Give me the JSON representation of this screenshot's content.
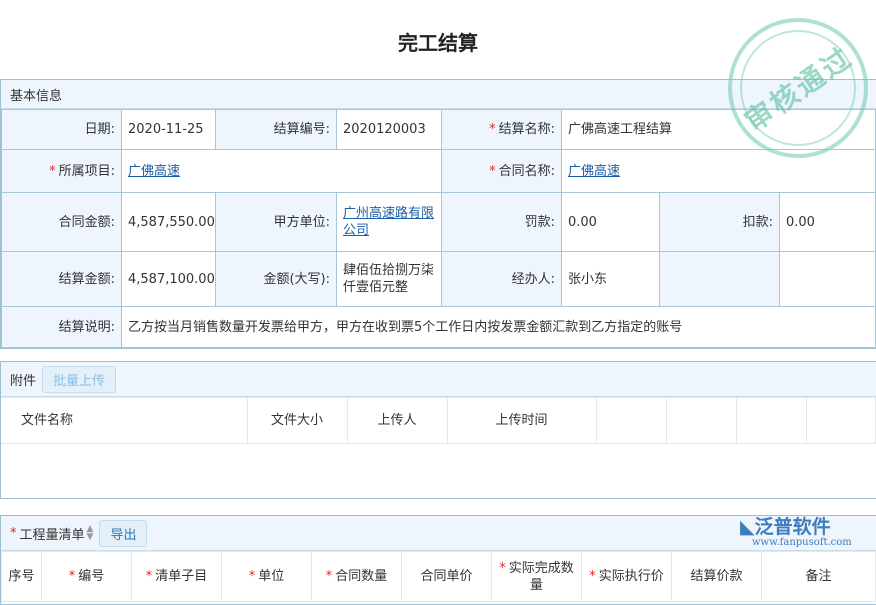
{
  "title": "完工结算",
  "stamp": "审核通过",
  "basic": {
    "header": "基本信息",
    "date_label": "日期:",
    "date": "2020-11-25",
    "no_label": "结算编号:",
    "no": "2020120003",
    "name_label": "结算名称:",
    "name": "广佛高速工程结算",
    "project_label": "所属项目:",
    "project": "广佛高速",
    "contract_label": "合同名称:",
    "contract": "广佛高速",
    "camount_label": "合同金额:",
    "camount": "4,587,550.00",
    "partya_label": "甲方单位:",
    "partya": "广州高速路有限公司",
    "penalty_label": "罚款:",
    "penalty": "0.00",
    "deduct_label": "扣款:",
    "deduct": "0.00",
    "samount_label": "结算金额:",
    "samount": "4,587,100.00",
    "upper_label": "金额(大写):",
    "upper": "肆佰伍拾捌万柒仟壹佰元整",
    "handler_label": "经办人:",
    "handler": "张小东",
    "desc_label": "结算说明:",
    "desc": "乙方按当月销售数量开发票给甲方，甲方在收到票5个工作日内按发票金额汇款到乙方指定的账号"
  },
  "attach": {
    "header": "附件",
    "upload": "批量上传",
    "columns": [
      "文件名称",
      "文件大小",
      "上传人",
      "上传时间",
      "",
      "",
      "",
      ""
    ]
  },
  "qty": {
    "header": "工程量清单",
    "export": "导出",
    "columns": [
      {
        "label": "序号",
        "req": false
      },
      {
        "label": "编号",
        "req": true
      },
      {
        "label": "清单子目",
        "req": true
      },
      {
        "label": "单位",
        "req": true
      },
      {
        "label": "合同数量",
        "req": true
      },
      {
        "label": "合同单价",
        "req": false
      },
      {
        "label": "实际完成数量",
        "req": true
      },
      {
        "label": "实际执行价",
        "req": true
      },
      {
        "label": "结算价款",
        "req": false
      },
      {
        "label": "备注",
        "req": false
      }
    ]
  },
  "logo": {
    "name": "泛普软件",
    "url": "www.fanpusoft.com"
  }
}
